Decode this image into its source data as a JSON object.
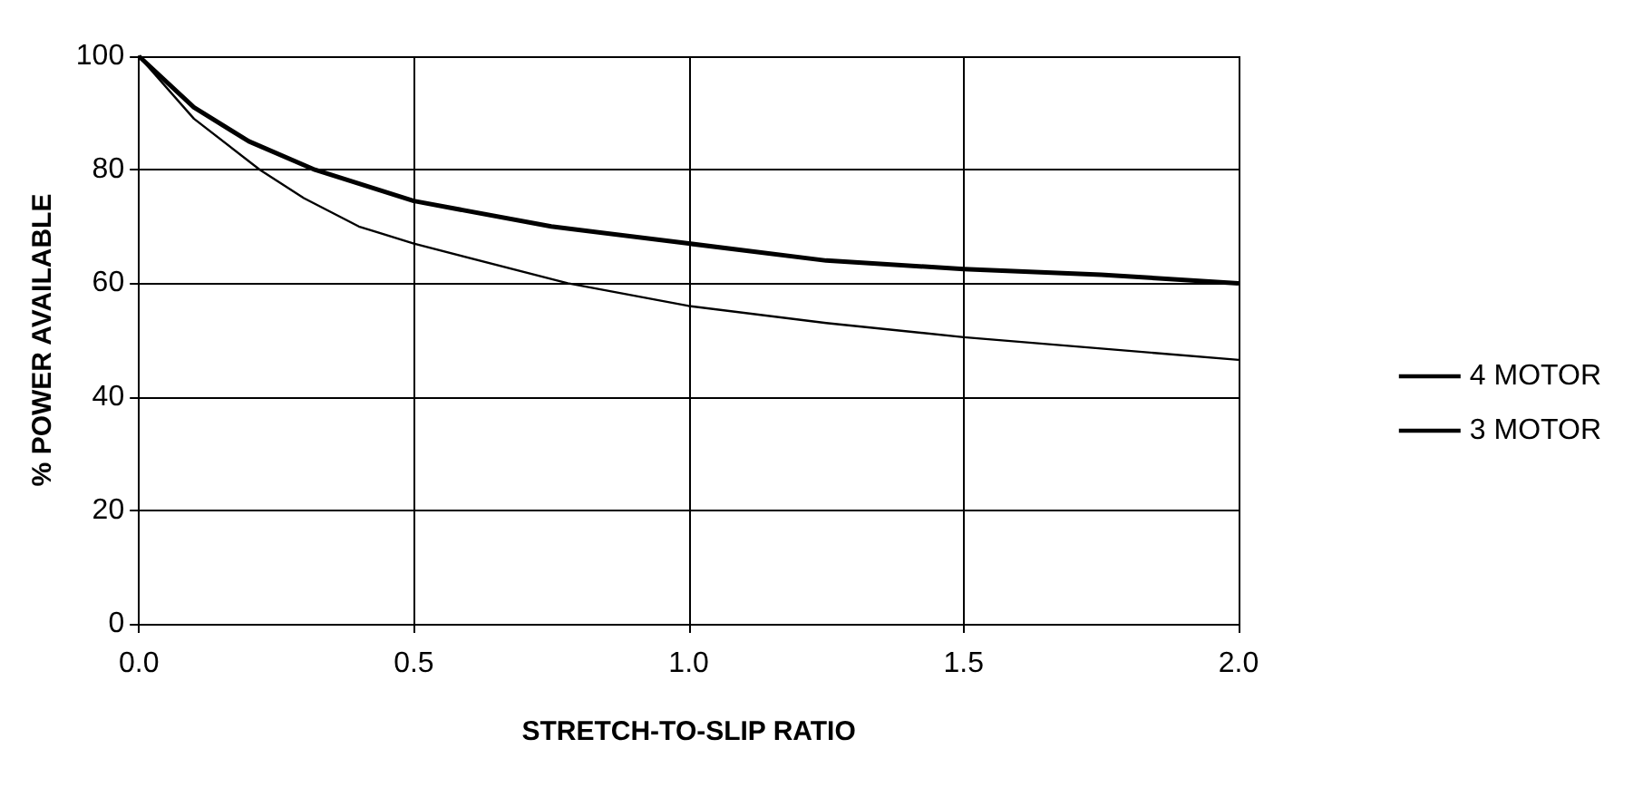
{
  "chart_data": {
    "type": "line",
    "xlabel": "STRETCH-TO-SLIP RATIO",
    "ylabel": "% POWER AVAILABLE",
    "xlim": [
      0,
      2
    ],
    "xticks": [
      {
        "value": 0,
        "label": "0.0"
      },
      {
        "value": 0.5,
        "label": "0.5"
      },
      {
        "value": 1,
        "label": "1.0"
      },
      {
        "value": 1.5,
        "label": "1.5"
      },
      {
        "value": 2,
        "label": "2.0"
      }
    ],
    "ylim": [
      0,
      100
    ],
    "yticks": [
      0,
      20,
      40,
      60,
      80,
      100
    ],
    "grid": true,
    "legend": "right",
    "marker": "none",
    "series": [
      {
        "name": "4 MOTOR",
        "color": "#000000",
        "x": [
          0,
          0.1,
          0.2,
          0.32,
          0.5,
          0.75,
          1.0,
          1.25,
          1.5,
          1.75,
          2.0
        ],
        "values": [
          100,
          91,
          85,
          80,
          74.5,
          70,
          67,
          64,
          62.5,
          61.5,
          60
        ]
      },
      {
        "name": "3 MOTOR",
        "color": "#000000",
        "x": [
          0,
          0.1,
          0.22,
          0.3,
          0.4,
          0.5,
          0.78,
          1.0,
          1.25,
          1.5,
          1.75,
          2.0
        ],
        "values": [
          100,
          89,
          80,
          75,
          70,
          67,
          60,
          56,
          53,
          50.5,
          48.5,
          46.5
        ]
      }
    ]
  }
}
